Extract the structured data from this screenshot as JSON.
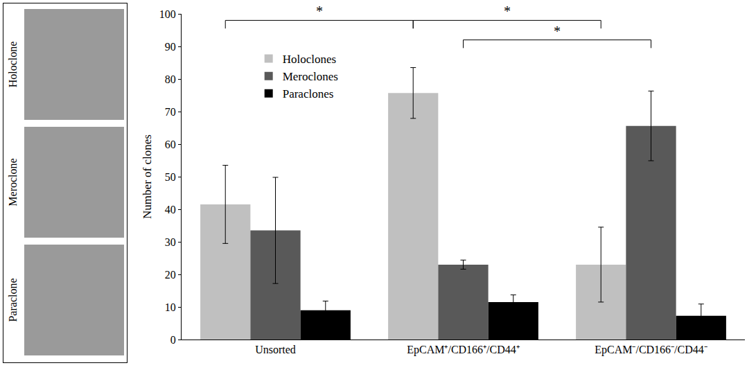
{
  "image_panels": [
    "Holoclone",
    "Meroclone",
    "Paraclone"
  ],
  "chart_data": {
    "type": "bar",
    "categories": [
      "Unsorted",
      "EpCAM⁺/CD166⁺/CD44⁺",
      "EpCAM⁻/CD166⁻/CD44⁻"
    ],
    "series": [
      {
        "name": "Holoclones",
        "color": "#c0c0c0",
        "values": [
          41.5,
          75.7,
          23
        ],
        "error": [
          12,
          7.8,
          11.5
        ]
      },
      {
        "name": "Meroclones",
        "color": "#595959",
        "values": [
          33.5,
          23,
          65.6
        ],
        "error": [
          16.3,
          1.4,
          10.7
        ]
      },
      {
        "name": "Paraclones",
        "color": "#000000",
        "values": [
          9,
          11.5,
          7.3
        ],
        "error": [
          2.8,
          2.2,
          3.6
        ]
      }
    ],
    "y_label": "Number of clones",
    "ylim": [
      0,
      100
    ],
    "yticks": [
      0,
      10,
      20,
      30,
      40,
      50,
      60,
      70,
      80,
      90,
      100
    ],
    "grid": false,
    "legend": "top left",
    "brackets": [
      {
        "from": {
          "category": 0,
          "series": 0
        },
        "to": {
          "category": 1,
          "series": 0
        },
        "y": 98,
        "text": "*"
      },
      {
        "from": {
          "category": 1,
          "series": 0
        },
        "to": {
          "category": 2,
          "series": 0
        },
        "y": 98,
        "text": "*"
      },
      {
        "from": {
          "category": 1,
          "series": 1
        },
        "to": {
          "category": 2,
          "series": 1
        },
        "y": 92,
        "text": "*"
      }
    ]
  }
}
